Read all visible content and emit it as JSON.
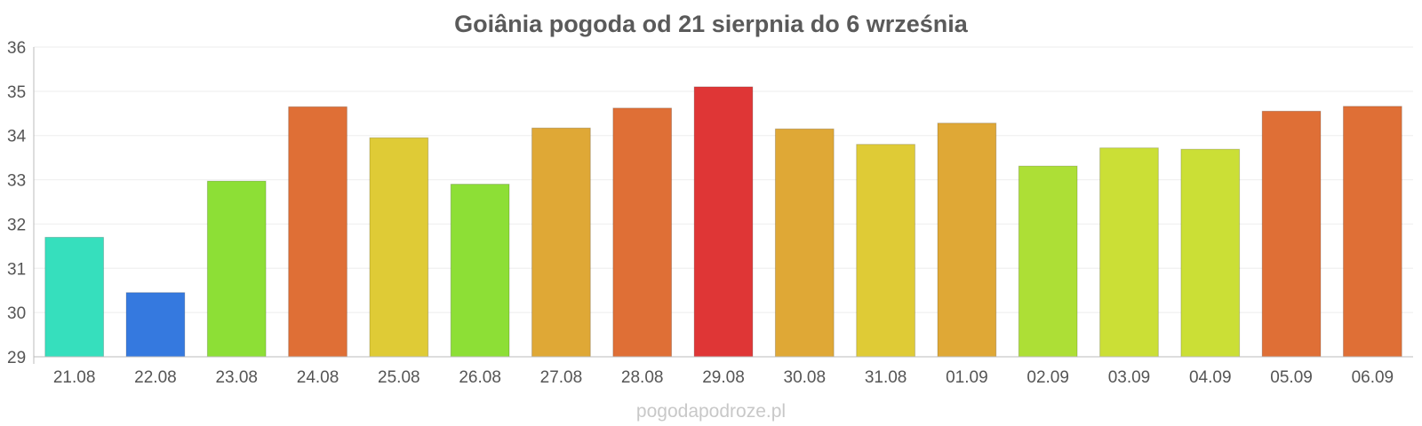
{
  "chart_data": {
    "type": "bar",
    "title": "Goiânia pogoda od 21 sierpnia do 6 września",
    "xlabel": "",
    "ylabel": "",
    "ylim": [
      29,
      36
    ],
    "yticks": [
      "29",
      "30",
      "31",
      "32",
      "33",
      "34",
      "35",
      "36"
    ],
    "categories": [
      "21.08",
      "22.08",
      "23.08",
      "24.08",
      "25.08",
      "26.08",
      "27.08",
      "28.08",
      "29.08",
      "30.08",
      "31.08",
      "01.09",
      "02.09",
      "03.09",
      "04.09",
      "05.09",
      "06.09"
    ],
    "values": [
      31.7,
      30.45,
      32.97,
      34.65,
      33.95,
      32.9,
      34.17,
      34.62,
      35.1,
      34.15,
      33.8,
      34.28,
      33.31,
      33.72,
      33.69,
      34.55,
      34.66
    ],
    "colors": [
      "#36dfbd",
      "#3579df",
      "#8ddf36",
      "#df6f36",
      "#dfcb36",
      "#8ddf36",
      "#dfa836",
      "#df6f36",
      "#df3636",
      "#dfa836",
      "#dfcb36",
      "#dfa836",
      "#addf36",
      "#cbdf36",
      "#cbdf36",
      "#df6f36",
      "#df6f36"
    ],
    "grid": true,
    "legend": "none"
  },
  "footer": {
    "text": "pogodapodroze.pl"
  }
}
